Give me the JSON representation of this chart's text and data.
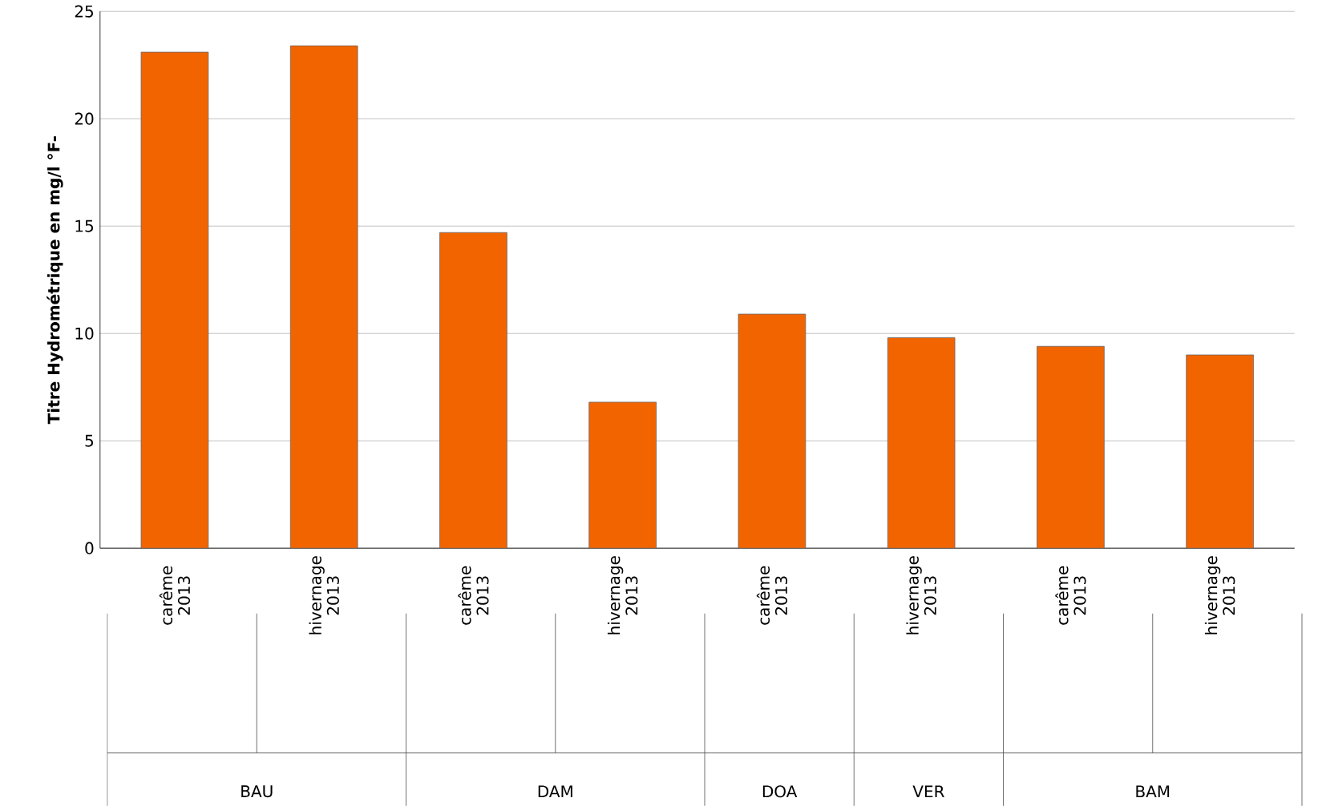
{
  "chart_data": {
    "type": "bar",
    "ylabel": "Titre Hydrométrique en mg/l °F-",
    "categories": [
      "carême 2013",
      "hivernage 2013",
      "carême 2013",
      "hivernage 2013",
      "carême 2013",
      "hivernage 2013",
      "carême 2013",
      "hivernage 2013"
    ],
    "values": [
      23.1,
      23.4,
      14.7,
      6.8,
      10.9,
      9.8,
      9.4,
      9.0
    ],
    "color": "#f26400",
    "ylim": [
      0,
      25
    ],
    "yticks": [
      0,
      5,
      10,
      15,
      20,
      25
    ],
    "grid": "y",
    "annotations": [
      "BAU",
      "DAM",
      "DOA",
      "VER",
      "BAM"
    ]
  }
}
